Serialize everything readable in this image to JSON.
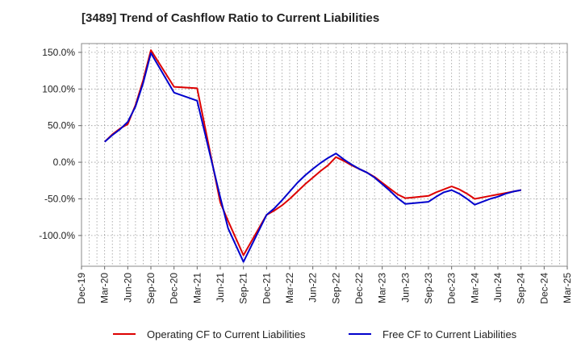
{
  "chart_data": {
    "type": "line",
    "title": "[3489]  Trend of Cashflow Ratio to Current Liabilities",
    "xlabel": "",
    "ylabel": "",
    "x_tick_labels": [
      "Dec-19",
      "Mar-20",
      "Jun-20",
      "Sep-20",
      "Dec-20",
      "Mar-21",
      "Jun-21",
      "Sep-21",
      "Dec-21",
      "Mar-22",
      "Jun-22",
      "Sep-22",
      "Dec-22",
      "Mar-23",
      "Jun-23",
      "Sep-23",
      "Dec-23",
      "Mar-24",
      "Jun-24",
      "Sep-24",
      "Dec-24",
      "Mar-25"
    ],
    "y_tick_labels": [
      "150.0%",
      "100.0%",
      "50.0%",
      "0.0%",
      "-50.0%",
      "-100.0%"
    ],
    "y_ticks": [
      150,
      100,
      50,
      0,
      -50,
      -100
    ],
    "ylim": [
      -142,
      162
    ],
    "grid": true,
    "legend_position": "bottom",
    "x": [
      "Mar-20",
      "Apr-20",
      "May-20",
      "Jun-20",
      "Jul-20",
      "Aug-20",
      "Sep-20",
      "Dec-20",
      "Mar-21",
      "Jun-21",
      "Jul-21",
      "Sep-21",
      "Dec-21",
      "Jan-22",
      "Feb-22",
      "Mar-22",
      "Apr-22",
      "May-22",
      "Jun-22",
      "Jul-22",
      "Aug-22",
      "Sep-22",
      "Oct-22",
      "Nov-22",
      "Dec-22",
      "Jan-23",
      "Feb-23",
      "Mar-23",
      "Apr-23",
      "May-23",
      "Jun-23",
      "Jul-23",
      "Aug-23",
      "Sep-23",
      "Oct-23",
      "Nov-23",
      "Dec-23",
      "Jan-24",
      "Feb-24",
      "Mar-24",
      "Apr-24",
      "May-24",
      "Jun-24",
      "Jul-24",
      "Aug-24",
      "Sep-24"
    ],
    "series": [
      {
        "name": "Operating CF to Current Liabilities",
        "color": "#dd0000",
        "values": [
          28,
          38,
          46,
          52,
          78,
          112,
          153,
          103,
          101,
          -55,
          -80,
          -127,
          -72,
          -66,
          -59,
          -50,
          -40,
          -30,
          -21,
          -12,
          -4,
          7,
          2,
          -4,
          -9,
          -14,
          -20,
          -28,
          -36,
          -44,
          -49,
          -48,
          -47,
          -46,
          -41,
          -37,
          -33,
          -37,
          -43,
          -50,
          -48,
          -46,
          -44,
          -42,
          -40,
          -38
        ]
      },
      {
        "name": "Free CF to Current Liabilities",
        "color": "#0000cc",
        "values": [
          28,
          37,
          45,
          55,
          76,
          108,
          149,
          95,
          84,
          -48,
          -90,
          -136,
          -72,
          -63,
          -52,
          -40,
          -28,
          -18,
          -9,
          -1,
          6,
          12,
          4,
          -3,
          -9,
          -14,
          -21,
          -30,
          -39,
          -49,
          -57,
          -56,
          -55,
          -54,
          -47,
          -41,
          -38,
          -43,
          -50,
          -58,
          -54,
          -50,
          -47,
          -43,
          -40,
          -38
        ]
      }
    ]
  }
}
